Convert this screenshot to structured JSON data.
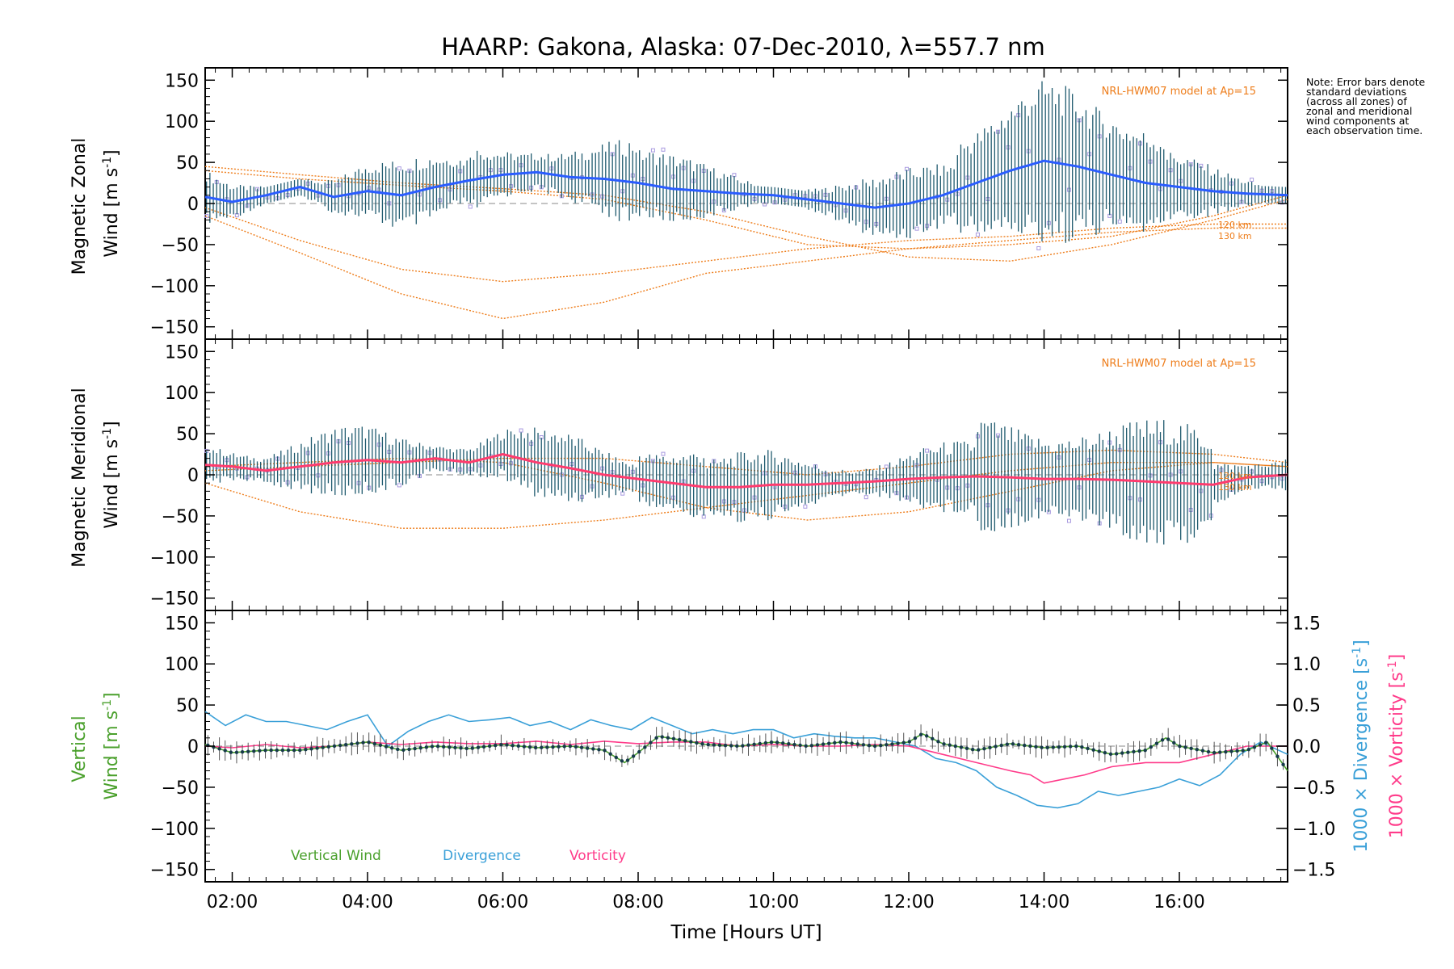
{
  "title": "HAARP: Gakona,  Alaska: 07-Dec-2010, λ=557.7 nm",
  "note": "Note: Error bars denote standard deviations (across all zones) of zonal and meridional wind components at each observation time.",
  "colors": {
    "zonal": "#2a5cff",
    "meridional": "#ff3b6e",
    "vertical": "#4aa02c",
    "divergence": "#3aa0d8",
    "vorticity": "#ff3b8a",
    "model": "#ee7d1b",
    "scatter": "#a99be0",
    "errorbar": "#1f5a6e"
  },
  "chart_data": [
    {
      "type": "line",
      "panel": "zonal",
      "ylabel_line1": "Magnetic Zonal",
      "ylabel_line2": "Wind [m s",
      "ylabel_sup": "-1",
      "ylabel_end": "]",
      "ylim": [
        -165,
        165
      ],
      "yticks": [
        150,
        100,
        50,
        0,
        -50,
        -100,
        -150
      ],
      "model_label": "NRL-HWM07 model at Ap=15",
      "model_alt_labels": [
        "120 km",
        "130 km"
      ],
      "x": [
        1.6,
        2.0,
        2.5,
        3.0,
        3.5,
        4.0,
        4.5,
        5.0,
        5.5,
        6.0,
        6.5,
        7.0,
        7.5,
        8.0,
        8.5,
        9.0,
        9.5,
        10.0,
        10.5,
        11.0,
        11.5,
        12.0,
        12.5,
        13.0,
        13.5,
        14.0,
        14.5,
        15.0,
        15.5,
        16.0,
        16.5,
        17.0,
        17.6
      ],
      "series": [
        {
          "values": [
            8,
            2,
            10,
            20,
            8,
            15,
            10,
            20,
            28,
            35,
            38,
            32,
            30,
            25,
            18,
            15,
            12,
            10,
            5,
            0,
            -5,
            0,
            10,
            25,
            40,
            52,
            45,
            35,
            25,
            20,
            15,
            12,
            10
          ]
        }
      ],
      "model_curves": [
        {
          "x": [
            1.6,
            3,
            4.5,
            6,
            7.5,
            9,
            10.5,
            12,
            13.5,
            15,
            16.5,
            17.6
          ],
          "y": [
            -15,
            -60,
            -110,
            -140,
            -120,
            -85,
            -70,
            -55,
            -45,
            -35,
            -30,
            -30
          ]
        },
        {
          "x": [
            1.6,
            3,
            4.5,
            6,
            7.5,
            9,
            10.5,
            12,
            13.5,
            15,
            16.5,
            17.6
          ],
          "y": [
            -5,
            -45,
            -80,
            -95,
            -85,
            -70,
            -55,
            -45,
            -40,
            -30,
            -25,
            -25
          ]
        },
        {
          "x": [
            1.6,
            3,
            4.5,
            6,
            7.5,
            9,
            10.5,
            12,
            13.5,
            15,
            16.5,
            17.6
          ],
          "y": [
            45,
            35,
            25,
            18,
            10,
            -10,
            -40,
            -65,
            -70,
            -50,
            -20,
            5
          ]
        },
        {
          "x": [
            1.6,
            3,
            4.5,
            6,
            7.5,
            9,
            10.5,
            12,
            13.5,
            15,
            16.5,
            17.6
          ],
          "y": [
            40,
            30,
            22,
            15,
            5,
            -20,
            -50,
            -55,
            -50,
            -40,
            -15,
            10
          ]
        }
      ]
    },
    {
      "type": "line",
      "panel": "meridional",
      "ylabel_line1": "Magnetic Meridional",
      "ylabel_line2": "Wind [m s",
      "ylabel_sup": "-1",
      "ylabel_end": "]",
      "ylim": [
        -165,
        165
      ],
      "yticks": [
        150,
        100,
        50,
        0,
        -50,
        -100,
        -150
      ],
      "model_label": "NRL-HWM07 model at Ap=15",
      "model_alt_labels": [
        "120 km",
        "130 km"
      ],
      "x": [
        1.6,
        2.0,
        2.5,
        3.0,
        3.5,
        4.0,
        4.5,
        5.0,
        5.5,
        6.0,
        6.5,
        7.0,
        7.5,
        8.0,
        8.5,
        9.0,
        9.5,
        10.0,
        10.5,
        11.0,
        11.5,
        12.0,
        12.5,
        13.0,
        13.5,
        14.0,
        14.5,
        15.0,
        15.5,
        16.0,
        16.5,
        17.0,
        17.6
      ],
      "series": [
        {
          "values": [
            12,
            10,
            5,
            10,
            15,
            18,
            15,
            20,
            15,
            25,
            15,
            8,
            0,
            -5,
            -10,
            -15,
            -15,
            -12,
            -12,
            -10,
            -8,
            -5,
            -3,
            -2,
            -3,
            -5,
            -5,
            -6,
            -8,
            -10,
            -12,
            -3,
            0
          ]
        }
      ],
      "model_curves": [
        {
          "x": [
            1.6,
            3,
            4.5,
            6,
            7.5,
            9,
            10.5,
            12,
            13.5,
            15,
            16.5,
            17.6
          ],
          "y": [
            -10,
            -45,
            -65,
            -65,
            -55,
            -40,
            -25,
            -10,
            5,
            15,
            15,
            10
          ]
        },
        {
          "x": [
            1.6,
            3,
            4.5,
            6,
            7.5,
            9,
            10.5,
            12,
            13.5,
            15,
            16.5,
            17.6
          ],
          "y": [
            10,
            15,
            20,
            15,
            -10,
            -40,
            -55,
            -45,
            -20,
            5,
            15,
            10
          ]
        },
        {
          "x": [
            1.6,
            3,
            4.5,
            6,
            7.5,
            9,
            10.5,
            12,
            13.5,
            15,
            16.5,
            17.6
          ],
          "y": [
            5,
            10,
            15,
            20,
            20,
            10,
            0,
            10,
            25,
            30,
            25,
            15
          ]
        }
      ]
    },
    {
      "type": "line",
      "panel": "vertical",
      "ylabel_line1": "Vertical",
      "ylabel_line2": "Wind [m s",
      "ylabel_sup": "-1",
      "ylabel_end": "]",
      "ylim": [
        -165,
        165
      ],
      "yticks": [
        150,
        100,
        50,
        0,
        -50,
        -100,
        -150
      ],
      "xlabel": "Time [Hours UT]",
      "xticks": [
        "02:00",
        "04:00",
        "06:00",
        "08:00",
        "10:00",
        "12:00",
        "14:00",
        "16:00"
      ],
      "xtick_values": [
        2,
        4,
        6,
        8,
        10,
        12,
        14,
        16
      ],
      "xlim": [
        1.6,
        17.6
      ],
      "y2lim": [
        -1.65,
        1.65
      ],
      "y2ticks": [
        "1.5",
        "1.0",
        "0.5",
        "0.0",
        "-0.5",
        "-1.0",
        "-1.5"
      ],
      "y2tick_values": [
        1.5,
        1.0,
        0.5,
        0.0,
        -0.5,
        -1.0,
        -1.5
      ],
      "y2label_div": "1000 × Divergence [s",
      "y2label_vort": "1000 × Vorticity [s",
      "y2label_sup": "-1",
      "y2label_end": "]",
      "legend": [
        "Vertical Wind",
        "Divergence",
        "Vorticity"
      ],
      "vertical_wind": {
        "x": [
          1.6,
          2.0,
          2.5,
          3.0,
          3.5,
          4.0,
          4.5,
          5.0,
          5.5,
          6.0,
          6.5,
          7.0,
          7.5,
          7.8,
          8.0,
          8.3,
          8.6,
          9.0,
          9.5,
          10.0,
          10.5,
          11.0,
          11.5,
          12.0,
          12.2,
          12.5,
          13.0,
          13.5,
          14.0,
          14.5,
          15.0,
          15.5,
          15.8,
          16.0,
          16.5,
          17.0,
          17.3,
          17.6
        ],
        "values": [
          2,
          -8,
          -5,
          -5,
          0,
          5,
          -5,
          0,
          -3,
          2,
          -2,
          0,
          -5,
          -20,
          -8,
          12,
          8,
          2,
          0,
          5,
          0,
          5,
          0,
          5,
          15,
          3,
          -5,
          3,
          -2,
          0,
          -10,
          -5,
          10,
          0,
          -8,
          -5,
          5,
          -30
        ]
      },
      "divergence": {
        "x": [
          1.6,
          1.9,
          2.2,
          2.5,
          2.8,
          3.1,
          3.4,
          3.7,
          4.0,
          4.3,
          4.6,
          4.9,
          5.2,
          5.5,
          5.8,
          6.1,
          6.4,
          6.7,
          7.0,
          7.3,
          7.6,
          7.9,
          8.2,
          8.5,
          8.8,
          9.1,
          9.4,
          9.7,
          10.0,
          10.3,
          10.6,
          10.9,
          11.2,
          11.5,
          11.8,
          12.1,
          12.4,
          12.7,
          13.0,
          13.3,
          13.6,
          13.9,
          14.2,
          14.5,
          14.8,
          15.1,
          15.4,
          15.7,
          16.0,
          16.3,
          16.6,
          16.9,
          17.2,
          17.6
        ],
        "values": [
          0.42,
          0.25,
          0.38,
          0.3,
          0.3,
          0.25,
          0.2,
          0.3,
          0.38,
          0.0,
          0.18,
          0.3,
          0.38,
          0.3,
          0.32,
          0.35,
          0.25,
          0.3,
          0.2,
          0.32,
          0.25,
          0.2,
          0.35,
          0.25,
          0.15,
          0.2,
          0.15,
          0.2,
          0.2,
          0.1,
          0.15,
          0.12,
          0.1,
          0.1,
          0.05,
          0.0,
          -0.15,
          -0.2,
          -0.3,
          -0.5,
          -0.6,
          -0.72,
          -0.75,
          -0.7,
          -0.55,
          -0.6,
          -0.55,
          -0.5,
          -0.4,
          -0.48,
          -0.35,
          -0.1,
          0.05,
          -0.1
        ]
      },
      "vorticity": {
        "x": [
          1.6,
          2.0,
          2.5,
          3.0,
          3.5,
          4.0,
          4.5,
          5.0,
          5.5,
          6.0,
          6.5,
          7.0,
          7.5,
          8.0,
          8.5,
          9.0,
          9.5,
          10.0,
          10.5,
          11.0,
          11.5,
          12.0,
          12.5,
          13.0,
          13.5,
          13.8,
          14.0,
          14.3,
          14.6,
          15.0,
          15.5,
          16.0,
          16.5,
          17.0,
          17.6
        ],
        "values": [
          0.0,
          -0.02,
          0.02,
          -0.02,
          0.0,
          0.05,
          0.02,
          0.05,
          0.03,
          0.03,
          0.06,
          0.02,
          0.06,
          0.03,
          0.05,
          0.05,
          0.0,
          0.02,
          0.0,
          0.0,
          0.02,
          0.0,
          -0.1,
          -0.2,
          -0.3,
          -0.35,
          -0.45,
          -0.4,
          -0.35,
          -0.25,
          -0.2,
          -0.2,
          -0.1,
          0.0,
          0.0
        ]
      }
    }
  ]
}
